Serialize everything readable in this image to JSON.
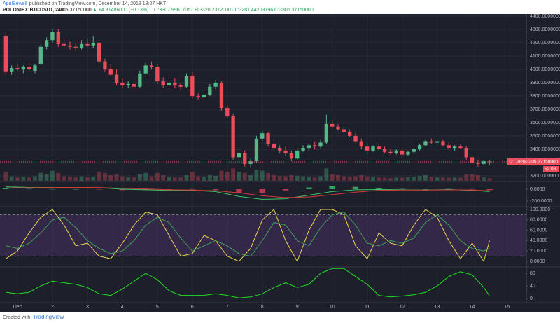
{
  "header": {
    "author": "AprilBewell",
    "published": "published on TradingView.com, December 14, 2018 19:07 HKT",
    "symbol": "POLONIEX:BTCUSDT, 240",
    "last": "3305.37150000",
    "change": "▲ +4.31486000 (+0.13%)",
    "ohlc": "O:3307.99617067 H:3320.23720001 L:3281.44203796 C:3305.37150000"
  },
  "footer": {
    "created": "Created with",
    "brand": "TradingView"
  },
  "chart_data": [
    {
      "type": "candlestick",
      "up_color": "#53b987",
      "down_color": "#eb4d5c",
      "open": [
        4250,
        3980,
        4010,
        4000,
        4020,
        3990,
        4040,
        4170,
        4220,
        4280,
        4190,
        4180,
        4170,
        4160,
        4190,
        4180,
        4200,
        4060,
        4000,
        3960,
        3900,
        3880,
        3890,
        3870,
        3970,
        4030,
        4020,
        3910,
        3880,
        3900,
        3880,
        3870,
        3950,
        3800,
        3790,
        3810,
        3870,
        3900,
        3710,
        3650,
        3340,
        3370,
        3290,
        3310,
        3480,
        3520,
        3440,
        3410,
        3390,
        3370,
        3330,
        3390,
        3410,
        3430,
        3420,
        3450,
        3590,
        3570,
        3550,
        3530,
        3500,
        3460,
        3420,
        3390,
        3420,
        3400,
        3380,
        3370,
        3390,
        3360,
        3380,
        3400,
        3430,
        3460,
        3450,
        3460,
        3430,
        3410,
        3420,
        3410,
        3340,
        3300,
        3290,
        3307.99617067
      ],
      "high": [
        4280,
        4030,
        4040,
        4030,
        4050,
        4040,
        4190,
        4240,
        4300,
        4300,
        4230,
        4210,
        4200,
        4220,
        4230,
        4250,
        4220,
        4080,
        4040,
        4000,
        3930,
        3910,
        3910,
        3990,
        4050,
        4060,
        4040,
        3940,
        3920,
        3930,
        3900,
        3970,
        3980,
        3820,
        3830,
        3890,
        3920,
        3910,
        3730,
        3670,
        3400,
        3390,
        3330,
        3500,
        3540,
        3530,
        3470,
        3430,
        3420,
        3390,
        3400,
        3430,
        3440,
        3460,
        3470,
        3660,
        3620,
        3590,
        3570,
        3550,
        3520,
        3480,
        3440,
        3430,
        3440,
        3420,
        3400,
        3400,
        3400,
        3390,
        3410,
        3440,
        3470,
        3480,
        3470,
        3470,
        3450,
        3430,
        3440,
        3420,
        3360,
        3320,
        3320,
        3320.23720001
      ],
      "low": [
        3950,
        3960,
        3990,
        3970,
        3990,
        3970,
        4030,
        4150,
        4200,
        4170,
        4160,
        4150,
        4140,
        4150,
        4170,
        4160,
        4040,
        3980,
        3950,
        3880,
        3860,
        3860,
        3850,
        3860,
        3960,
        4000,
        3890,
        3860,
        3850,
        3860,
        3850,
        3860,
        3780,
        3770,
        3770,
        3800,
        3850,
        3690,
        3630,
        3320,
        3280,
        3270,
        3260,
        3300,
        3460,
        3420,
        3390,
        3370,
        3350,
        3310,
        3320,
        3380,
        3390,
        3400,
        3410,
        3440,
        3560,
        3540,
        3520,
        3490,
        3450,
        3400,
        3370,
        3380,
        3390,
        3370,
        3360,
        3360,
        3350,
        3350,
        3370,
        3390,
        3420,
        3440,
        3430,
        3420,
        3400,
        3390,
        3400,
        3320,
        3280,
        3270,
        3280,
        3281.44203796
      ],
      "close": [
        3980,
        4010,
        4000,
        4020,
        4000,
        4030,
        4170,
        4220,
        4280,
        4190,
        4180,
        4170,
        4160,
        4190,
        4180,
        4200,
        4060,
        4000,
        3960,
        3900,
        3880,
        3890,
        3870,
        3970,
        4030,
        4020,
        3910,
        3880,
        3900,
        3880,
        3870,
        3950,
        3800,
        3790,
        3810,
        3870,
        3900,
        3710,
        3650,
        3340,
        3370,
        3290,
        3310,
        3480,
        3520,
        3440,
        3410,
        3390,
        3370,
        3330,
        3390,
        3410,
        3430,
        3420,
        3450,
        3590,
        3570,
        3550,
        3530,
        3500,
        3460,
        3420,
        3390,
        3420,
        3400,
        3380,
        3370,
        3390,
        3360,
        3380,
        3400,
        3430,
        3460,
        3450,
        3460,
        3430,
        3410,
        3420,
        3410,
        3340,
        3300,
        3290,
        3310,
        3305.3715
      ],
      "volume": {
        "values": [
          40,
          20,
          15,
          18,
          15,
          20,
          35,
          30,
          45,
          35,
          20,
          18,
          15,
          20,
          15,
          18,
          40,
          35,
          25,
          30,
          20,
          15,
          15,
          30,
          35,
          20,
          35,
          25,
          18,
          15,
          15,
          25,
          40,
          20,
          18,
          25,
          22,
          45,
          40,
          55,
          40,
          35,
          25,
          50,
          45,
          35,
          25,
          22,
          20,
          25,
          22,
          20,
          18,
          15,
          20,
          55,
          30,
          25,
          20,
          18,
          20,
          25,
          20,
          18,
          15,
          14,
          12,
          15,
          14,
          16,
          18,
          22,
          25,
          18,
          15,
          15,
          14,
          15,
          14,
          30,
          28,
          25,
          15,
          12
        ],
        "ylim": [
          0,
          100
        ]
      },
      "ylim": [
        3163,
        4416
      ],
      "yticks": [
        {
          "value": 4400,
          "label": "4400.00000000"
        },
        {
          "value": 4300,
          "label": "4300.00000000"
        },
        {
          "value": 4200,
          "label": "4200.00000000"
        },
        {
          "value": 4100,
          "label": "4100.00000000"
        },
        {
          "value": 4000,
          "label": "4000.00000000"
        },
        {
          "value": 3900,
          "label": "3900.00000000"
        },
        {
          "value": 3800,
          "label": "3800.00000000"
        },
        {
          "value": 3700,
          "label": "3700.00000000"
        },
        {
          "value": 3600,
          "label": "3600.00000000"
        },
        {
          "value": 3500,
          "label": "3500.00000000"
        },
        {
          "value": 3400,
          "label": "3400.00000000"
        },
        {
          "value": 3300,
          "label": "3300.00000000"
        },
        {
          "value": 3200,
          "label": "3200.00000000"
        }
      ],
      "last_price": 3305.3715,
      "change_tag": "-21.78%",
      "price_tag": "3305.37150000",
      "volume_tag": "52.08",
      "grid": true
    },
    {
      "type": "macd",
      "x": [
        0,
        4,
        8,
        12,
        16,
        20,
        24,
        28,
        32,
        36,
        40,
        44,
        48,
        52,
        56,
        60,
        64,
        68,
        72,
        76,
        80,
        83
      ],
      "series": [
        {
          "name": "MACD",
          "color": "#3cc46a",
          "values": [
            40,
            30,
            30,
            30,
            25,
            0,
            -10,
            -20,
            -20,
            -40,
            -120,
            -170,
            -160,
            -100,
            -40,
            -10,
            -5,
            -10,
            -15,
            -5,
            -20,
            -40
          ]
        },
        {
          "name": "Signal",
          "color": "#d03a3a",
          "values": [
            20,
            25,
            28,
            30,
            28,
            15,
            5,
            -10,
            -15,
            -25,
            -60,
            -110,
            -140,
            -130,
            -90,
            -50,
            -20,
            -15,
            -15,
            -10,
            -15,
            -25
          ]
        }
      ],
      "histogram": {
        "values": [
          20,
          5,
          2,
          0,
          -3,
          -15,
          -15,
          -10,
          -5,
          -15,
          -60,
          -60,
          -20,
          30,
          50,
          40,
          15,
          5,
          0,
          5,
          -5,
          -15
        ],
        "up_color": "#3cc46a",
        "down_color": "#e0405a"
      },
      "ylim": [
        -282,
        118
      ],
      "yticks": [
        {
          "value": 0,
          "label": "0.0000"
        },
        {
          "value": -200,
          "label": "-200.0000"
        }
      ]
    },
    {
      "type": "stochrsi",
      "x": [
        0,
        2,
        4,
        6,
        8,
        10,
        12,
        14,
        16,
        18,
        20,
        22,
        24,
        26,
        28,
        30,
        32,
        34,
        36,
        38,
        40,
        42,
        44,
        46,
        48,
        50,
        52,
        54,
        56,
        58,
        60,
        62,
        64,
        66,
        68,
        70,
        72,
        74,
        76,
        78,
        80,
        82,
        83
      ],
      "series": [
        {
          "name": "K",
          "color": "#e8d44d",
          "values": [
            5,
            20,
            55,
            85,
            100,
            70,
            30,
            35,
            10,
            5,
            35,
            70,
            95,
            90,
            50,
            10,
            15,
            50,
            40,
            10,
            0,
            25,
            80,
            100,
            40,
            0,
            60,
            100,
            100,
            90,
            30,
            5,
            55,
            35,
            30,
            70,
            100,
            85,
            40,
            5,
            35,
            0,
            40
          ]
        },
        {
          "name": "D",
          "color": "#3da35a",
          "values": [
            30,
            25,
            35,
            55,
            80,
            85,
            65,
            40,
            25,
            15,
            20,
            40,
            70,
            85,
            75,
            45,
            20,
            30,
            40,
            30,
            15,
            10,
            40,
            75,
            70,
            40,
            30,
            65,
            90,
            95,
            70,
            35,
            30,
            40,
            35,
            45,
            75,
            90,
            70,
            40,
            25,
            20,
            25
          ]
        }
      ],
      "band": [
        10,
        90
      ],
      "band_color": "#7b3fa0",
      "ylim": [
        -9.5,
        104
      ],
      "yticks": [
        {
          "value": 100,
          "label": "100.0000"
        },
        {
          "value": 80,
          "label": "80.0000"
        },
        {
          "value": 60,
          "label": "60.0000"
        },
        {
          "value": 40,
          "label": "40.0000"
        },
        {
          "value": 20,
          "label": "20.0000"
        },
        {
          "value": 0,
          "label": "0.0000"
        }
      ]
    },
    {
      "type": "line",
      "x": [
        0,
        2,
        4,
        6,
        8,
        10,
        12,
        14,
        16,
        18,
        20,
        22,
        24,
        26,
        28,
        30,
        32,
        34,
        36,
        38,
        40,
        42,
        44,
        46,
        48,
        50,
        52,
        54,
        56,
        58,
        60,
        62,
        64,
        66,
        68,
        70,
        72,
        74,
        76,
        78,
        80,
        82,
        83
      ],
      "series": [
        {
          "name": "ADX",
          "color": "#22dd22",
          "values": [
            20,
            15,
            20,
            40,
            55,
            50,
            45,
            35,
            15,
            10,
            30,
            55,
            80,
            60,
            25,
            10,
            10,
            10,
            15,
            10,
            2,
            5,
            15,
            35,
            50,
            35,
            45,
            80,
            95,
            95,
            70,
            45,
            10,
            5,
            8,
            12,
            20,
            40,
            70,
            85,
            75,
            35,
            8
          ]
        }
      ],
      "ylim": [
        -11,
        98
      ],
      "yticks": [
        80,
        40,
        0
      ],
      "xlim": [
        -1,
        89.3
      ],
      "xticks": [
        {
          "value": 2,
          "label": "Dec"
        },
        {
          "value": 8,
          "label": "2"
        },
        {
          "value": 14,
          "label": "3"
        },
        {
          "value": 20,
          "label": "4"
        },
        {
          "value": 26,
          "label": "5"
        },
        {
          "value": 32,
          "label": "6"
        },
        {
          "value": 38,
          "label": "7"
        },
        {
          "value": 44,
          "label": "8"
        },
        {
          "value": 50,
          "label": "9"
        },
        {
          "value": 56,
          "label": "10"
        },
        {
          "value": 62,
          "label": "11"
        },
        {
          "value": 68,
          "label": "12"
        },
        {
          "value": 74,
          "label": "13"
        },
        {
          "value": 80,
          "label": "14"
        },
        {
          "value": 86,
          "label": "15"
        }
      ]
    }
  ]
}
